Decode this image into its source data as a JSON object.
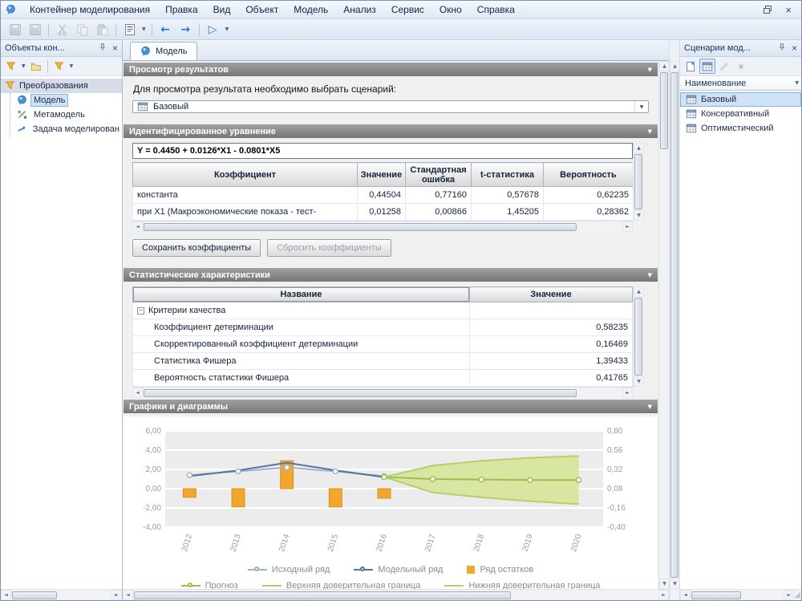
{
  "icons": {
    "caret": "▼",
    "up": "▲",
    "down": "▼",
    "left": "◄",
    "right": "►",
    "close": "×",
    "back": "←",
    "forward": "→",
    "play": "▷",
    "minus": "−",
    "grip": "◢"
  },
  "menu": {
    "items": [
      "Контейнер моделирования",
      "Правка",
      "Вид",
      "Объект",
      "Модель",
      "Анализ",
      "Сервис",
      "Окно",
      "Справка"
    ]
  },
  "left_panel": {
    "title": "Объекты кон...",
    "root": "Преобразования",
    "items": [
      {
        "label": "Модель"
      },
      {
        "label": "Метамодель"
      },
      {
        "label": "Задача моделирован"
      }
    ]
  },
  "main": {
    "tab": "Модель",
    "results": {
      "title": "Просмотр результатов",
      "hint": "Для просмотра результата необходимо выбрать сценарий:",
      "scenario": "Базовый"
    },
    "equation": {
      "title": "Идентифицированное уравнение",
      "formula": "Y = 0.4450 + 0.0126*X1 - 0.0801*X5",
      "headers": [
        "Коэффициент",
        "Значение",
        "Стандартная ошибка",
        "t-статистика",
        "Вероятность"
      ],
      "rows": [
        [
          "константа",
          "0,44504",
          "0,77160",
          "0,57678",
          "0,62235"
        ],
        [
          "при X1 (Макроэкономические показа - тест-",
          "0,01258",
          "0,00866",
          "1,45205",
          "0,28362"
        ]
      ],
      "save_button": "Сохранить коэффициенты",
      "reset_button": "Сбросить коэффициенты"
    },
    "stats": {
      "title": "Статистические характеристики",
      "headers": [
        "Название",
        "Значение"
      ],
      "group": "Критерии качества",
      "rows": [
        {
          "name": "Коэффициент детерминации",
          "value": "0,58235"
        },
        {
          "name": "Скорректированный коэффициент детерминации",
          "value": "0,16469"
        },
        {
          "name": "Статистика Фишера",
          "value": "1,39433"
        },
        {
          "name": "Вероятность статистики Фишера",
          "value": "0,41765"
        }
      ]
    },
    "charts": {
      "title": "Графики и диаграммы"
    }
  },
  "right_panel": {
    "title": "Сценарии мод...",
    "column": "Наименование",
    "items": [
      {
        "label": "Базовый"
      },
      {
        "label": "Консервативный"
      },
      {
        "label": "Оптимистический"
      }
    ]
  },
  "chart_data": {
    "type": "line",
    "x": [
      "2012",
      "2013",
      "2014",
      "2015",
      "2016",
      "2017",
      "2018",
      "2019",
      "2020"
    ],
    "left_axis": {
      "min": -4,
      "max": 6,
      "tick_values": [
        6,
        4,
        2,
        0,
        -2,
        -4
      ],
      "tick_labels": [
        "6,00",
        "4,00",
        "2,00",
        "0,00",
        "-2,00",
        "-4,00"
      ]
    },
    "right_axis": {
      "min": -0.4,
      "max": 0.8,
      "tick_labels": [
        "0,80",
        "0,56",
        "0,32",
        "0,08",
        "-0,16",
        "-0,40"
      ]
    },
    "series": [
      {
        "name": "Исходный ряд",
        "type": "line",
        "color": "#9bb2cd",
        "marker": true,
        "legend": "line-circle",
        "legend_row": 1,
        "values": [
          1.4,
          1.8,
          2.2,
          1.8,
          1.3,
          null,
          null,
          null,
          null
        ]
      },
      {
        "name": "Модельный ряд",
        "type": "line",
        "color": "#55779f",
        "marker": false,
        "legend": "line-circle",
        "legend_row": 1,
        "values": [
          1.3,
          1.9,
          2.7,
          1.9,
          1.2,
          null,
          null,
          null,
          null
        ]
      },
      {
        "name": "Ряд остатков",
        "type": "bar",
        "color": "#f1a72e",
        "legend": "square",
        "legend_row": 1,
        "values": [
          -0.9,
          -1.9,
          2.9,
          -1.9,
          -1.0,
          null,
          null,
          null,
          null
        ]
      },
      {
        "name": "Прогноз",
        "type": "line",
        "color": "#9cbe4a",
        "marker": true,
        "legend": "line-circle",
        "legend_row": 2,
        "values": [
          null,
          null,
          null,
          null,
          1.2,
          1.0,
          0.95,
          0.9,
          0.9
        ]
      },
      {
        "name": "Верхняя доверительная граница",
        "type": "line",
        "color": "#b5cf6a",
        "marker": false,
        "legend": "line",
        "legend_row": 2,
        "values": [
          null,
          null,
          null,
          null,
          1.2,
          2.4,
          2.9,
          3.2,
          3.4
        ]
      },
      {
        "name": "Нижняя доверительная граница",
        "type": "line",
        "color": "#b5cf6a",
        "marker": false,
        "legend": "line",
        "legend_row": 2,
        "values": [
          null,
          null,
          null,
          null,
          1.2,
          -0.4,
          -0.9,
          -1.3,
          -1.6
        ]
      }
    ],
    "band": {
      "upper": "Верхняя доверительная граница",
      "lower": "Нижняя доверительная граница",
      "fill": "#d6e59a"
    }
  }
}
